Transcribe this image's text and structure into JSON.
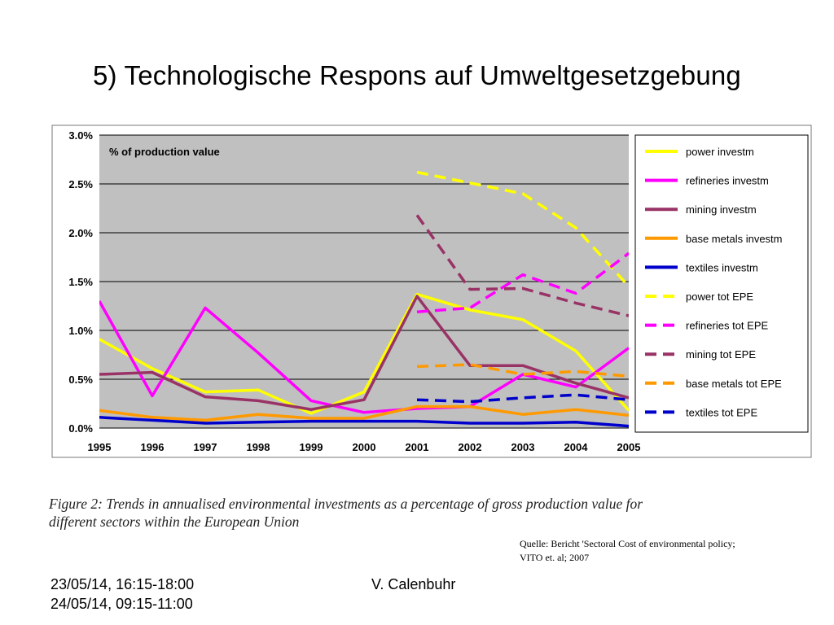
{
  "slide": {
    "title": "5) Technologische Respons auf Umweltgesetzgebung",
    "caption_line1": "Figure 2: Trends in annualised environmental investments as a percentage of gross production value for",
    "caption_line2": "different sectors within the European Union",
    "source_line1": "Quelle: Bericht 'Sectoral Cost of environmental policy;",
    "source_line2": "VITO et. al; 2007",
    "footer_date1": "23/05/14, 16:15-18:00",
    "footer_date2": "24/05/14, 09:15-11:00",
    "footer_author": "V. Calenbuhr"
  },
  "chart_data": {
    "type": "line",
    "annotation": "% of production value",
    "categories": [
      "1995",
      "1996",
      "1997",
      "1998",
      "1999",
      "2000",
      "2001",
      "2002",
      "2003",
      "2004",
      "2005"
    ],
    "ylim": [
      0,
      3.0
    ],
    "yticks": [
      "0.0%",
      "0.5%",
      "1.0%",
      "1.5%",
      "2.0%",
      "2.5%",
      "3.0%"
    ],
    "ytick_values": [
      0,
      0.5,
      1.0,
      1.5,
      2.0,
      2.5,
      3.0
    ],
    "grid": true,
    "legend_position": "right",
    "background": "#c0c0c0",
    "series": [
      {
        "name": "power investm",
        "color": "#ffff00",
        "dashed": false,
        "values": [
          0.91,
          0.61,
          0.37,
          0.39,
          0.15,
          0.37,
          1.37,
          1.21,
          1.11,
          0.79,
          0.18
        ]
      },
      {
        "name": "refineries investm",
        "color": "#ff00ff",
        "dashed": false,
        "values": [
          1.3,
          0.33,
          1.23,
          0.77,
          0.28,
          0.16,
          0.2,
          0.22,
          0.55,
          0.42,
          0.82
        ]
      },
      {
        "name": "mining investm",
        "color": "#993366",
        "dashed": false,
        "values": [
          0.55,
          0.57,
          0.32,
          0.28,
          0.19,
          0.29,
          1.35,
          0.64,
          0.64,
          0.46,
          0.31
        ]
      },
      {
        "name": "base metals investm",
        "color": "#ff9900",
        "dashed": false,
        "values": [
          0.18,
          0.11,
          0.08,
          0.14,
          0.1,
          0.1,
          0.22,
          0.22,
          0.14,
          0.19,
          0.13
        ]
      },
      {
        "name": "textiles investm",
        "color": "#0000cc",
        "dashed": false,
        "values": [
          0.11,
          0.08,
          0.05,
          0.06,
          0.07,
          0.07,
          0.07,
          0.05,
          0.05,
          0.06,
          0.02
        ]
      },
      {
        "name": "power tot EPE",
        "color": "#ffff00",
        "dashed": true,
        "values": [
          null,
          null,
          null,
          null,
          null,
          null,
          2.62,
          2.51,
          2.4,
          2.05,
          1.45
        ]
      },
      {
        "name": "refineries tot EPE",
        "color": "#ff00ff",
        "dashed": true,
        "values": [
          null,
          null,
          null,
          null,
          null,
          null,
          1.19,
          1.23,
          1.57,
          1.38,
          1.79
        ]
      },
      {
        "name": "mining tot EPE",
        "color": "#993366",
        "dashed": true,
        "values": [
          null,
          null,
          null,
          null,
          null,
          null,
          2.18,
          1.42,
          1.43,
          1.28,
          1.15
        ]
      },
      {
        "name": "base metals tot EPE",
        "color": "#ff9900",
        "dashed": true,
        "values": [
          null,
          null,
          null,
          null,
          null,
          null,
          0.63,
          0.65,
          0.55,
          0.58,
          0.53
        ]
      },
      {
        "name": "textiles tot EPE",
        "color": "#0000cc",
        "dashed": true,
        "values": [
          null,
          null,
          null,
          null,
          null,
          null,
          0.29,
          0.27,
          0.31,
          0.34,
          0.29
        ]
      }
    ]
  }
}
